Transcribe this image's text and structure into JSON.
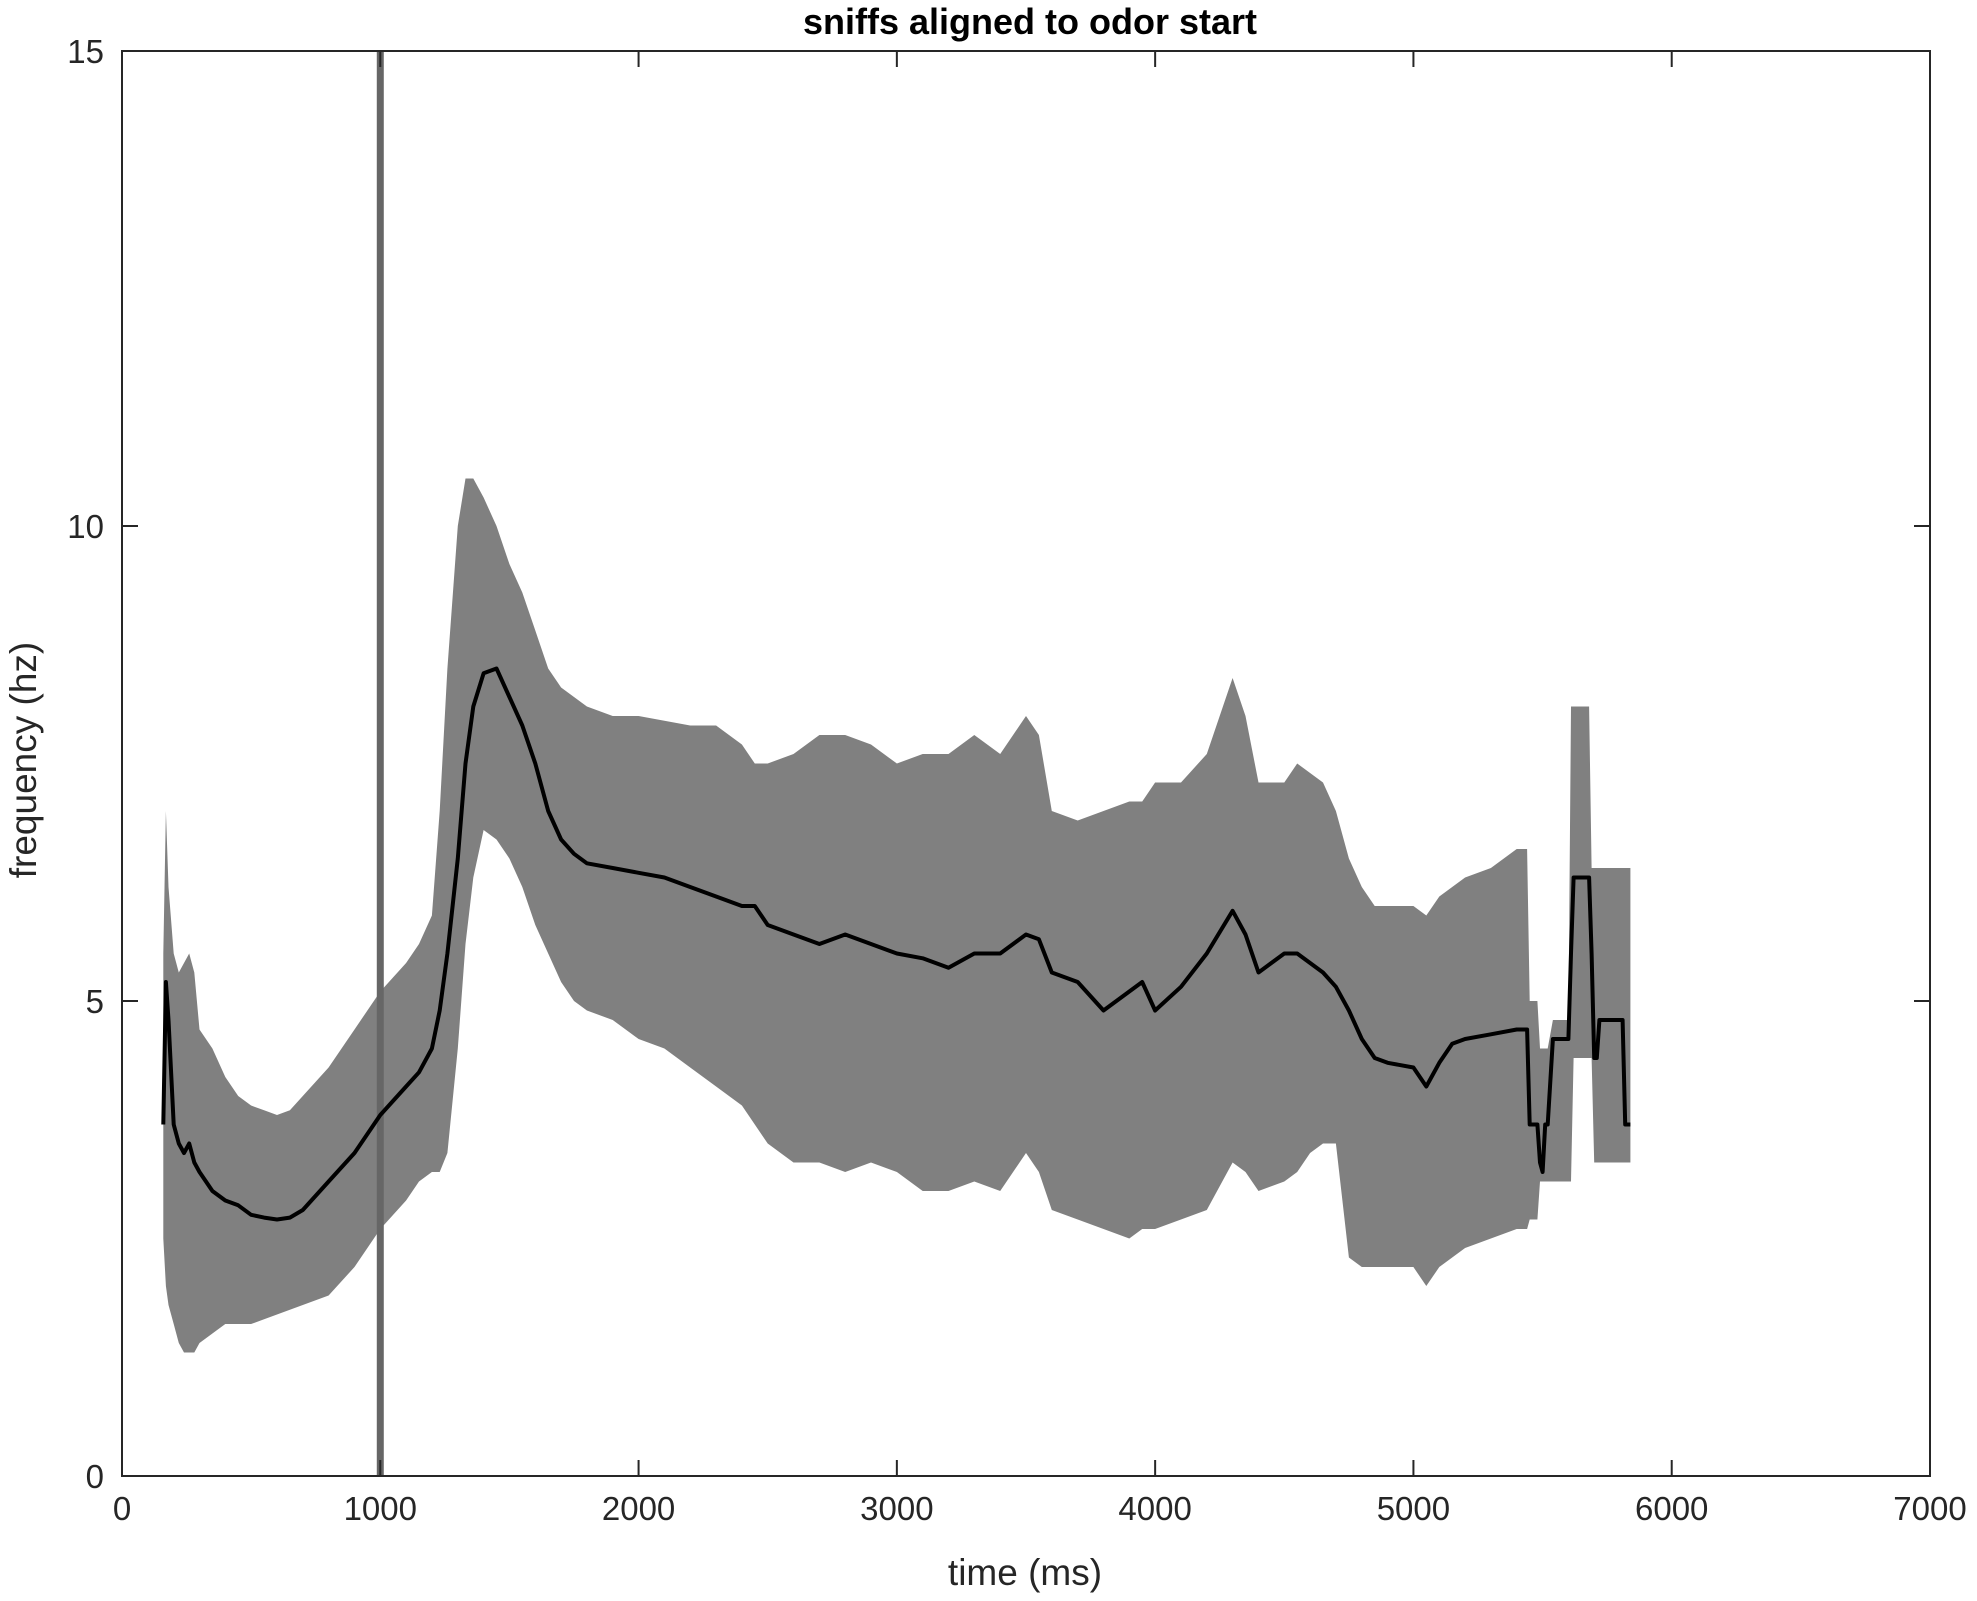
{
  "chart_data": {
    "type": "line",
    "title": "sniffs aligned to odor start",
    "xlabel": "time (ms)",
    "ylabel": "frequency (hz)",
    "xlim": [
      0,
      7000
    ],
    "ylim": [
      0,
      15
    ],
    "xticks": [
      "0",
      "1000",
      "2000",
      "3000",
      "4000",
      "5000",
      "6000",
      "7000"
    ],
    "yticks": [
      "0",
      "5",
      "10",
      "15"
    ],
    "grid": false,
    "legend": "none",
    "vline": {
      "x": 1000,
      "color": "#666666"
    },
    "colors": {
      "mean_line": "#000000",
      "band": "#808080",
      "axes": "#262626"
    },
    "series": [
      {
        "style": "mean",
        "x": [
          160,
          170,
          180,
          200,
          220,
          240,
          260,
          280,
          300,
          350,
          400,
          450,
          500,
          550,
          600,
          650,
          700,
          800,
          900,
          1000,
          1100,
          1150,
          1200,
          1230,
          1260,
          1300,
          1330,
          1360,
          1400,
          1450,
          1500,
          1550,
          1600,
          1650,
          1700,
          1750,
          1800,
          1900,
          2000,
          2100,
          2200,
          2300,
          2400,
          2450,
          2500,
          2600,
          2700,
          2800,
          2900,
          3000,
          3100,
          3200,
          3300,
          3400,
          3500,
          3550,
          3600,
          3700,
          3800,
          3900,
          3950,
          4000,
          4100,
          4200,
          4300,
          4350,
          4400,
          4500,
          4550,
          4600,
          4650,
          4700,
          4750,
          4800,
          4850,
          4900,
          5000,
          5050,
          5100,
          5150,
          5200,
          5300,
          5400,
          5440,
          5450,
          5480,
          5490,
          5500,
          5510,
          5520,
          5540,
          5600,
          5610,
          5620,
          5680,
          5690,
          5700,
          5710,
          5720,
          5810,
          5820,
          5840
        ],
        "values": [
          3.7,
          5.2,
          4.8,
          3.7,
          3.5,
          3.4,
          3.5,
          3.3,
          3.2,
          3.0,
          2.9,
          2.85,
          2.75,
          2.72,
          2.7,
          2.72,
          2.8,
          3.1,
          3.4,
          3.8,
          4.1,
          4.25,
          4.5,
          4.9,
          5.5,
          6.5,
          7.5,
          8.1,
          8.45,
          8.5,
          8.2,
          7.9,
          7.5,
          7.0,
          6.7,
          6.55,
          6.45,
          6.4,
          6.35,
          6.3,
          6.2,
          6.1,
          6.0,
          6.0,
          5.8,
          5.7,
          5.6,
          5.7,
          5.6,
          5.5,
          5.45,
          5.35,
          5.5,
          5.5,
          5.7,
          5.65,
          5.3,
          5.2,
          4.9,
          5.1,
          5.2,
          4.9,
          5.15,
          5.5,
          5.95,
          5.7,
          5.3,
          5.5,
          5.5,
          5.4,
          5.3,
          5.15,
          4.9,
          4.6,
          4.4,
          4.35,
          4.3,
          4.1,
          4.35,
          4.55,
          4.6,
          4.65,
          4.7,
          4.7,
          3.7,
          3.7,
          3.3,
          3.2,
          3.7,
          3.7,
          4.6,
          4.6,
          5.5,
          6.3,
          6.3,
          5.5,
          4.4,
          4.4,
          4.8,
          4.8,
          3.7,
          3.7
        ]
      },
      {
        "style": "band-upper",
        "x": [
          160,
          170,
          180,
          200,
          220,
          240,
          260,
          280,
          300,
          350,
          400,
          450,
          500,
          550,
          600,
          650,
          700,
          800,
          900,
          1000,
          1100,
          1150,
          1200,
          1230,
          1260,
          1300,
          1330,
          1360,
          1400,
          1450,
          1500,
          1550,
          1600,
          1650,
          1700,
          1750,
          1800,
          1900,
          2000,
          2100,
          2200,
          2300,
          2400,
          2450,
          2500,
          2600,
          2700,
          2800,
          2900,
          3000,
          3100,
          3200,
          3300,
          3400,
          3500,
          3550,
          3600,
          3700,
          3800,
          3900,
          3950,
          4000,
          4100,
          4200,
          4300,
          4350,
          4400,
          4500,
          4550,
          4600,
          4650,
          4700,
          4750,
          4800,
          4850,
          4900,
          5000,
          5050,
          5100,
          5150,
          5200,
          5300,
          5400,
          5440,
          5450,
          5480,
          5490,
          5500,
          5510,
          5520,
          5540,
          5600,
          5610,
          5620,
          5680,
          5690,
          5700,
          5710,
          5720,
          5810,
          5820,
          5840
        ],
        "values": [
          5.5,
          7.0,
          6.2,
          5.5,
          5.3,
          5.4,
          5.5,
          5.3,
          4.7,
          4.5,
          4.2,
          4.0,
          3.9,
          3.85,
          3.8,
          3.85,
          4.0,
          4.3,
          4.7,
          5.1,
          5.4,
          5.6,
          5.9,
          7.0,
          8.5,
          10.0,
          10.5,
          10.5,
          10.3,
          10.0,
          9.6,
          9.3,
          8.9,
          8.5,
          8.3,
          8.2,
          8.1,
          8.0,
          8.0,
          7.95,
          7.9,
          7.9,
          7.7,
          7.5,
          7.5,
          7.6,
          7.8,
          7.8,
          7.7,
          7.5,
          7.6,
          7.6,
          7.8,
          7.6,
          8.0,
          7.8,
          7.0,
          6.9,
          7.0,
          7.1,
          7.1,
          7.3,
          7.3,
          7.6,
          8.4,
          8.0,
          7.3,
          7.3,
          7.5,
          7.4,
          7.3,
          7.0,
          6.5,
          6.2,
          6.0,
          6.0,
          6.0,
          5.9,
          6.1,
          6.2,
          6.3,
          6.4,
          6.6,
          6.6,
          5.0,
          5.0,
          4.5,
          4.5,
          4.5,
          4.5,
          4.8,
          4.8,
          8.1,
          8.1,
          8.1,
          6.4,
          6.4,
          6.4,
          6.4,
          6.4,
          6.4,
          6.4
        ]
      },
      {
        "style": "band-lower",
        "x": [
          160,
          170,
          180,
          200,
          220,
          240,
          260,
          280,
          300,
          350,
          400,
          450,
          500,
          550,
          600,
          650,
          700,
          800,
          900,
          1000,
          1100,
          1150,
          1200,
          1230,
          1260,
          1300,
          1330,
          1360,
          1400,
          1450,
          1500,
          1550,
          1600,
          1650,
          1700,
          1750,
          1800,
          1900,
          2000,
          2100,
          2200,
          2300,
          2400,
          2450,
          2500,
          2600,
          2700,
          2800,
          2900,
          3000,
          3100,
          3200,
          3300,
          3400,
          3500,
          3550,
          3600,
          3700,
          3800,
          3900,
          3950,
          4000,
          4100,
          4200,
          4300,
          4350,
          4400,
          4500,
          4550,
          4600,
          4650,
          4700,
          4750,
          4800,
          4850,
          4900,
          5000,
          5050,
          5100,
          5150,
          5200,
          5300,
          5400,
          5440,
          5450,
          5480,
          5490,
          5500,
          5510,
          5520,
          5540,
          5600,
          5610,
          5620,
          5680,
          5690,
          5700,
          5710,
          5720,
          5810,
          5820,
          5840
        ],
        "values": [
          2.5,
          2.0,
          1.8,
          1.6,
          1.4,
          1.3,
          1.3,
          1.3,
          1.4,
          1.5,
          1.6,
          1.6,
          1.6,
          1.65,
          1.7,
          1.75,
          1.8,
          1.9,
          2.2,
          2.6,
          2.9,
          3.1,
          3.2,
          3.2,
          3.4,
          4.5,
          5.6,
          6.3,
          6.8,
          6.7,
          6.5,
          6.2,
          5.8,
          5.5,
          5.2,
          5.0,
          4.9,
          4.8,
          4.6,
          4.5,
          4.3,
          4.1,
          3.9,
          3.7,
          3.5,
          3.3,
          3.3,
          3.2,
          3.3,
          3.2,
          3.0,
          3.0,
          3.1,
          3.0,
          3.4,
          3.2,
          2.8,
          2.7,
          2.6,
          2.5,
          2.6,
          2.6,
          2.7,
          2.8,
          3.3,
          3.2,
          3.0,
          3.1,
          3.2,
          3.4,
          3.5,
          3.5,
          2.3,
          2.2,
          2.2,
          2.2,
          2.2,
          2.0,
          2.2,
          2.3,
          2.4,
          2.5,
          2.6,
          2.6,
          2.7,
          2.7,
          3.1,
          3.1,
          3.1,
          3.1,
          3.1,
          3.1,
          3.1,
          4.4,
          4.4,
          4.4,
          3.3,
          3.3,
          3.3,
          3.3,
          3.3,
          3.3
        ]
      }
    ]
  }
}
